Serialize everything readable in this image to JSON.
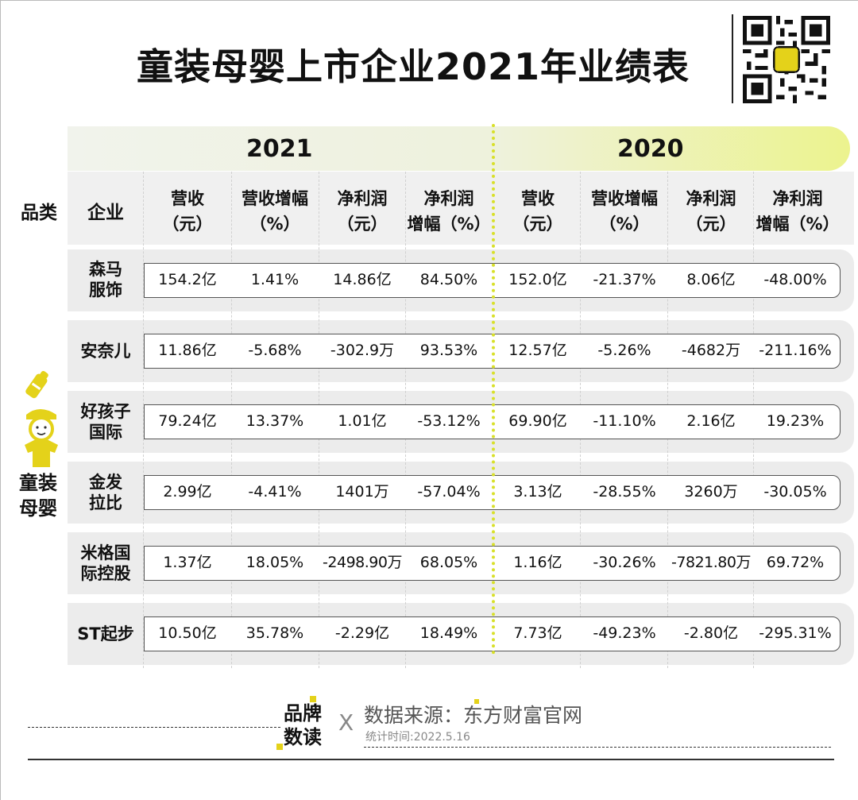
{
  "title": "童装母婴上市企业2021年业绩表",
  "years": {
    "y2021": "2021",
    "y2020": "2020"
  },
  "headers": {
    "category": "品类",
    "company": "企业",
    "revenue": [
      "营收",
      "（元）"
    ],
    "revenue_growth": [
      "营收增幅",
      "（%）"
    ],
    "net_profit": [
      "净利润",
      "（元）"
    ],
    "profit_growth": [
      "净利润",
      "增幅（%）"
    ]
  },
  "category": [
    "童装",
    "母婴"
  ],
  "rows": [
    {
      "company": [
        "森马",
        "服饰"
      ],
      "values": [
        "154.2亿",
        "1.41%",
        "14.86亿",
        "84.50%",
        "152.0亿",
        "-21.37%",
        "8.06亿",
        "-48.00%"
      ]
    },
    {
      "company": [
        "安奈儿"
      ],
      "values": [
        "11.86亿",
        "-5.68%",
        "-302.9万",
        "93.53%",
        "12.57亿",
        "-5.26%",
        "-4682万",
        "-211.16%"
      ]
    },
    {
      "company": [
        "好孩子",
        "国际"
      ],
      "values": [
        "79.24亿",
        "13.37%",
        "1.01亿",
        "-53.12%",
        "69.90亿",
        "-11.10%",
        "2.16亿",
        "19.23%"
      ]
    },
    {
      "company": [
        "金发",
        "拉比"
      ],
      "values": [
        "2.99亿",
        "-4.41%",
        "1401万",
        "-57.04%",
        "3.13亿",
        "-28.55%",
        "3260万",
        "-30.05%"
      ]
    },
    {
      "company": [
        "米格国",
        "际控股"
      ],
      "values": [
        "1.37亿",
        "18.05%",
        "-2498.90万",
        "68.05%",
        "1.16亿",
        "-30.26%",
        "-7821.80万",
        "69.72%"
      ]
    },
    {
      "company": [
        "ST起步"
      ],
      "values": [
        "10.50亿",
        "35.78%",
        "-2.29亿",
        "18.49%",
        "7.73亿",
        "-49.23%",
        "-2.80亿",
        "-295.31%"
      ]
    }
  ],
  "footer": {
    "brand": [
      "品牌",
      "数读"
    ],
    "separator": "X",
    "source": "数据来源：东方财富官网",
    "stat_time": "统计时间:2022.5.16"
  },
  "colors": {
    "accent": "#e4d21a",
    "divider": "#d8e02a",
    "band": "#ececec"
  },
  "icons": {
    "qr": "qr-code-icon",
    "mascot": "baby-bottle-kid-icon"
  }
}
